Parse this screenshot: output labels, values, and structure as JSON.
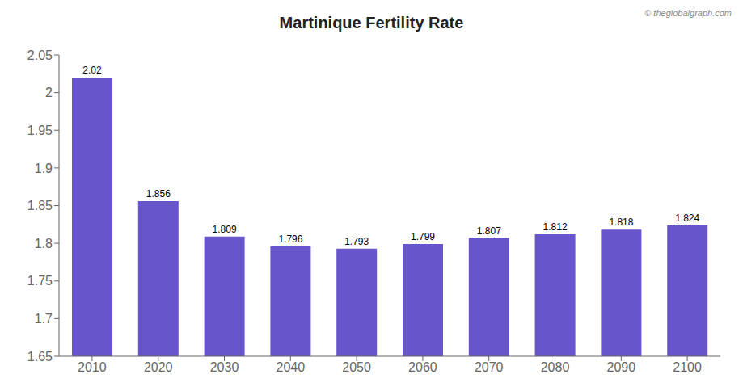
{
  "chart_data": {
    "type": "bar",
    "title": "Martinique Fertility Rate",
    "categories": [
      "2010",
      "2020",
      "2030",
      "2040",
      "2050",
      "2060",
      "2070",
      "2080",
      "2090",
      "2100"
    ],
    "values": [
      2.02,
      1.856,
      1.809,
      1.796,
      1.793,
      1.799,
      1.807,
      1.812,
      1.818,
      1.824
    ],
    "color": "#6655cc",
    "ylim": [
      1.65,
      2.05
    ],
    "yticks": [
      1.65,
      1.7,
      1.75,
      1.8,
      1.85,
      1.9,
      1.95,
      2,
      2.05
    ],
    "grid": false,
    "data_labels": true,
    "annotations": [
      "© theglobalgraph.com"
    ]
  }
}
